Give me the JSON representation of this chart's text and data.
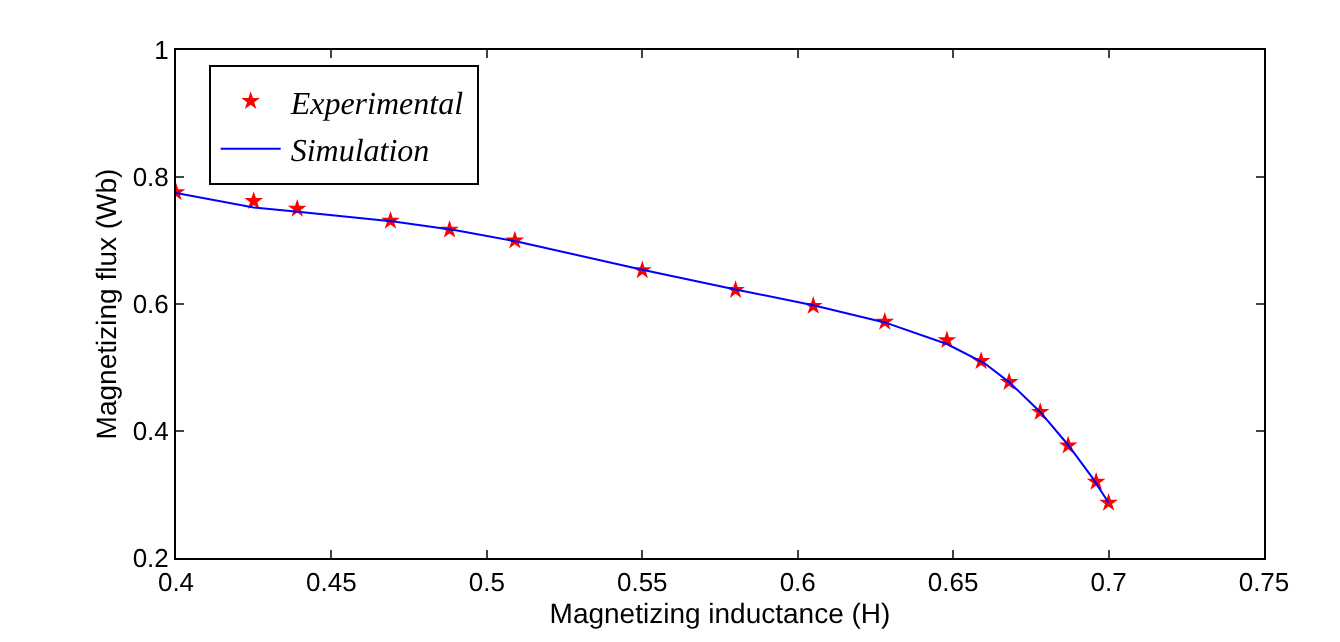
{
  "chart_data": {
    "type": "line",
    "xlabel": "Magnetizing inductance (H)",
    "ylabel": "Magnetizing flux (Wb)",
    "xlim": [
      0.4,
      0.75
    ],
    "xticks": [
      0.4,
      0.45,
      0.5,
      0.55,
      0.6,
      0.65,
      0.7,
      0.75
    ],
    "ylim": [
      0.2,
      1
    ],
    "yticks": [
      0.2,
      0.4,
      0.6,
      0.8,
      1
    ],
    "legend": "top left",
    "series": [
      {
        "name": "Experimental",
        "type": "scatter",
        "marker": "star",
        "color": "#ff0000",
        "x": [
          0.4,
          0.425,
          0.439,
          0.469,
          0.488,
          0.509,
          0.55,
          0.58,
          0.605,
          0.628,
          0.648,
          0.659,
          0.668,
          0.678,
          0.687,
          0.696,
          0.7
        ],
        "values": [
          0.776,
          0.762,
          0.75,
          0.731,
          0.717,
          0.7,
          0.653,
          0.622,
          0.597,
          0.572,
          0.543,
          0.51,
          0.477,
          0.43,
          0.377,
          0.32,
          0.287
        ]
      },
      {
        "name": "Simulation",
        "marker": "none",
        "line_style": "solid",
        "color": "#0000ff",
        "x": [
          0.4,
          0.425,
          0.44,
          0.47,
          0.49,
          0.51,
          0.55,
          0.58,
          0.605,
          0.628,
          0.648,
          0.66,
          0.668,
          0.678,
          0.687,
          0.695,
          0.7
        ],
        "values": [
          0.775,
          0.752,
          0.745,
          0.73,
          0.716,
          0.698,
          0.654,
          0.623,
          0.598,
          0.571,
          0.537,
          0.507,
          0.477,
          0.43,
          0.378,
          0.325,
          0.287
        ]
      }
    ]
  }
}
